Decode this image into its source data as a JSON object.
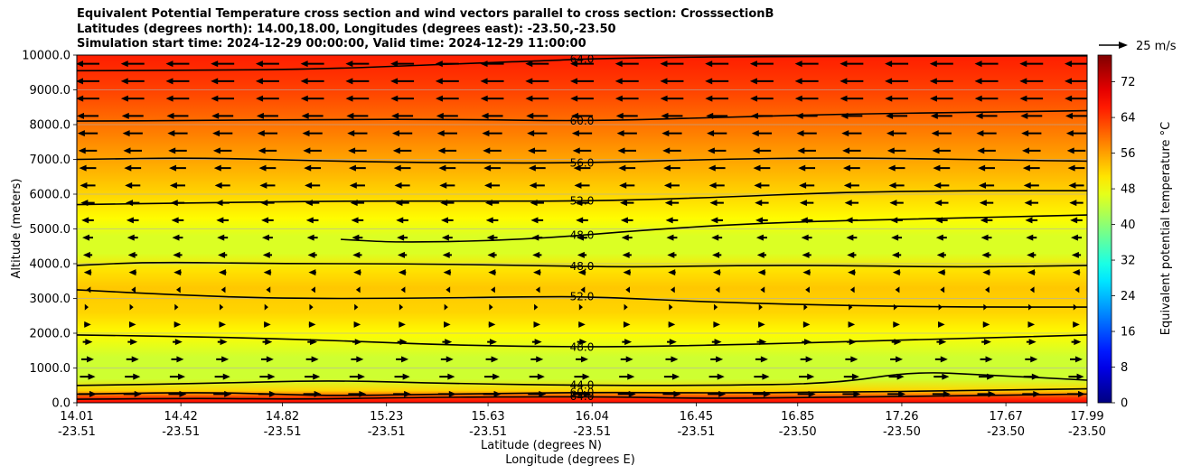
{
  "title_lines": [
    "Equivalent Potential Temperature cross section and wind vectors parallel to cross section: CrosssectionB",
    "Latitudes (degrees north): 14.00,18.00, Longitudes (degrees east): -23.50,-23.50",
    "Simulation start time: 2024-12-29 00:00:00, Valid time: 2024-12-29 11:00:00"
  ],
  "quiver_key_label": "25 m/s",
  "colorbar": {
    "label": "Equivalent potential temperature $^\\circ$C",
    "label_display": "Equivalent potential temperature °C",
    "ticks": [
      "0",
      "8",
      "16",
      "24",
      "32",
      "40",
      "48",
      "56",
      "64",
      "72"
    ],
    "range": [
      0,
      78
    ]
  },
  "chart_data": {
    "type": "heatmap",
    "subtype": "filled contour cross section with wind vectors",
    "ylabel": "Altitude (meters)",
    "xlabel_lines": [
      "Latitude (degrees N)",
      "Longitude (degrees E)"
    ],
    "ylim": [
      0,
      10000
    ],
    "xlim": [
      14.01,
      17.99
    ],
    "y_ticks": [
      "0.0",
      "1000.0",
      "2000.0",
      "3000.0",
      "4000.0",
      "5000.0",
      "6000.0",
      "7000.0",
      "8000.0",
      "9000.0",
      "10000.0"
    ],
    "x_ticks": [
      {
        "lat": "14.01",
        "lon": "-23.51"
      },
      {
        "lat": "14.42",
        "lon": "-23.51"
      },
      {
        "lat": "14.82",
        "lon": "-23.51"
      },
      {
        "lat": "15.23",
        "lon": "-23.51"
      },
      {
        "lat": "15.63",
        "lon": "-23.51"
      },
      {
        "lat": "16.04",
        "lon": "-23.51"
      },
      {
        "lat": "16.45",
        "lon": "-23.51"
      },
      {
        "lat": "16.85",
        "lon": "-23.50"
      },
      {
        "lat": "17.26",
        "lon": "-23.50"
      },
      {
        "lat": "17.67",
        "lon": "-23.50"
      },
      {
        "lat": "17.99",
        "lon": "-23.50"
      }
    ],
    "grid": "horizontal",
    "theta_e_profile": [
      {
        "alt": 0,
        "value": 68
      },
      {
        "alt": 150,
        "value": 64
      },
      {
        "alt": 350,
        "value": 52
      },
      {
        "alt": 700,
        "value": 45
      },
      {
        "alt": 1300,
        "value": 45
      },
      {
        "alt": 2000,
        "value": 49
      },
      {
        "alt": 2600,
        "value": 52
      },
      {
        "alt": 3300,
        "value": 53
      },
      {
        "alt": 3800,
        "value": 51
      },
      {
        "alt": 4300,
        "value": 46
      },
      {
        "alt": 4800,
        "value": 46
      },
      {
        "alt": 5300,
        "value": 49
      },
      {
        "alt": 6000,
        "value": 52
      },
      {
        "alt": 6800,
        "value": 55
      },
      {
        "alt": 7600,
        "value": 58
      },
      {
        "alt": 8400,
        "value": 61
      },
      {
        "alt": 9200,
        "value": 64
      },
      {
        "alt": 10000,
        "value": 66
      }
    ],
    "contour_labels": [
      "64.0",
      "64.0",
      "60.0",
      "56.0",
      "52.0",
      "56.0",
      "48.0",
      "48.0",
      "52.0",
      "48.0",
      "44.0",
      "60.0",
      "60.0",
      "64.0",
      "64.0"
    ],
    "contours": [
      {
        "value": "64.0",
        "pts": [
          [
            14.01,
            9550
          ],
          [
            14.5,
            9560
          ],
          [
            15.0,
            9600
          ],
          [
            15.5,
            9750
          ],
          [
            15.9,
            9850
          ],
          [
            16.04,
            9900
          ],
          [
            16.5,
            9950
          ],
          [
            17.0,
            9960
          ],
          [
            17.99,
            9980
          ]
        ]
      },
      {
        "value": "60.0",
        "pts": [
          [
            14.01,
            8100
          ],
          [
            14.5,
            8120
          ],
          [
            15.0,
            8150
          ],
          [
            15.5,
            8150
          ],
          [
            16.04,
            8100
          ],
          [
            16.5,
            8200
          ],
          [
            17.0,
            8300
          ],
          [
            17.5,
            8350
          ],
          [
            17.99,
            8400
          ]
        ]
      },
      {
        "value": "56.0",
        "pts": [
          [
            14.01,
            7000
          ],
          [
            14.5,
            7050
          ],
          [
            15.0,
            6950
          ],
          [
            15.5,
            6900
          ],
          [
            16.04,
            6900
          ],
          [
            16.5,
            7000
          ],
          [
            17.0,
            7050
          ],
          [
            17.5,
            7000
          ],
          [
            17.99,
            6950
          ]
        ]
      },
      {
        "value": "52.0",
        "pts": [
          [
            14.01,
            5700
          ],
          [
            14.5,
            5750
          ],
          [
            15.0,
            5800
          ],
          [
            15.5,
            5800
          ],
          [
            16.04,
            5800
          ],
          [
            16.5,
            5900
          ],
          [
            17.0,
            6050
          ],
          [
            17.5,
            6100
          ],
          [
            17.99,
            6100
          ]
        ]
      },
      {
        "value": "48.0",
        "pts": [
          [
            14.01,
            3950
          ],
          [
            14.3,
            4050
          ],
          [
            14.8,
            4000
          ],
          [
            15.3,
            4000
          ],
          [
            15.8,
            3950
          ],
          [
            16.2,
            3900
          ],
          [
            16.6,
            3950
          ],
          [
            17.0,
            3950
          ],
          [
            17.5,
            3900
          ],
          [
            17.99,
            3950
          ]
        ]
      },
      {
        "value": "48.0",
        "pts": [
          [
            15.05,
            4700
          ],
          [
            15.3,
            4600
          ],
          [
            15.8,
            4700
          ],
          [
            16.3,
            5000
          ],
          [
            16.8,
            5200
          ],
          [
            17.4,
            5300
          ],
          [
            17.99,
            5400
          ]
        ]
      },
      {
        "value": "52.0",
        "pts": [
          [
            14.01,
            3250
          ],
          [
            14.4,
            3100
          ],
          [
            14.8,
            3000
          ],
          [
            15.3,
            3000
          ],
          [
            15.8,
            3050
          ],
          [
            16.04,
            3050
          ],
          [
            16.5,
            2900
          ],
          [
            17.0,
            2800
          ],
          [
            17.5,
            2750
          ],
          [
            17.99,
            2750
          ]
        ]
      },
      {
        "value": "48.0",
        "pts": [
          [
            14.01,
            1950
          ],
          [
            14.5,
            1900
          ],
          [
            15.0,
            1800
          ],
          [
            15.5,
            1650
          ],
          [
            16.04,
            1600
          ],
          [
            16.5,
            1650
          ],
          [
            17.0,
            1750
          ],
          [
            17.5,
            1850
          ],
          [
            17.99,
            1950
          ]
        ]
      },
      {
        "value": "44.0",
        "pts": [
          [
            14.01,
            500
          ],
          [
            14.5,
            550
          ],
          [
            15.0,
            650
          ],
          [
            15.5,
            550
          ],
          [
            16.04,
            500
          ],
          [
            16.5,
            500
          ],
          [
            17.0,
            550
          ],
          [
            17.3,
            900
          ],
          [
            17.6,
            800
          ],
          [
            17.99,
            650
          ]
        ]
      },
      {
        "value": "60.0",
        "pts": [
          [
            14.01,
            250
          ],
          [
            14.5,
            300
          ],
          [
            14.8,
            250
          ],
          [
            15.0,
            200
          ],
          [
            15.5,
            250
          ],
          [
            16.04,
            300
          ],
          [
            16.5,
            280
          ],
          [
            17.0,
            300
          ],
          [
            17.5,
            350
          ],
          [
            17.99,
            400
          ]
        ]
      },
      {
        "value": "64.0",
        "pts": [
          [
            14.01,
            100
          ],
          [
            14.5,
            130
          ],
          [
            14.9,
            100
          ],
          [
            15.3,
            150
          ],
          [
            16.04,
            180
          ],
          [
            16.5,
            120
          ],
          [
            17.0,
            160
          ],
          [
            17.5,
            200
          ],
          [
            17.99,
            250
          ]
        ]
      }
    ],
    "wind_note": "Horizontal wind vectors: westward (leftward) aloft above ~3500 m, weak near 3000 m, eastward (rightward) below ~2500 m."
  }
}
